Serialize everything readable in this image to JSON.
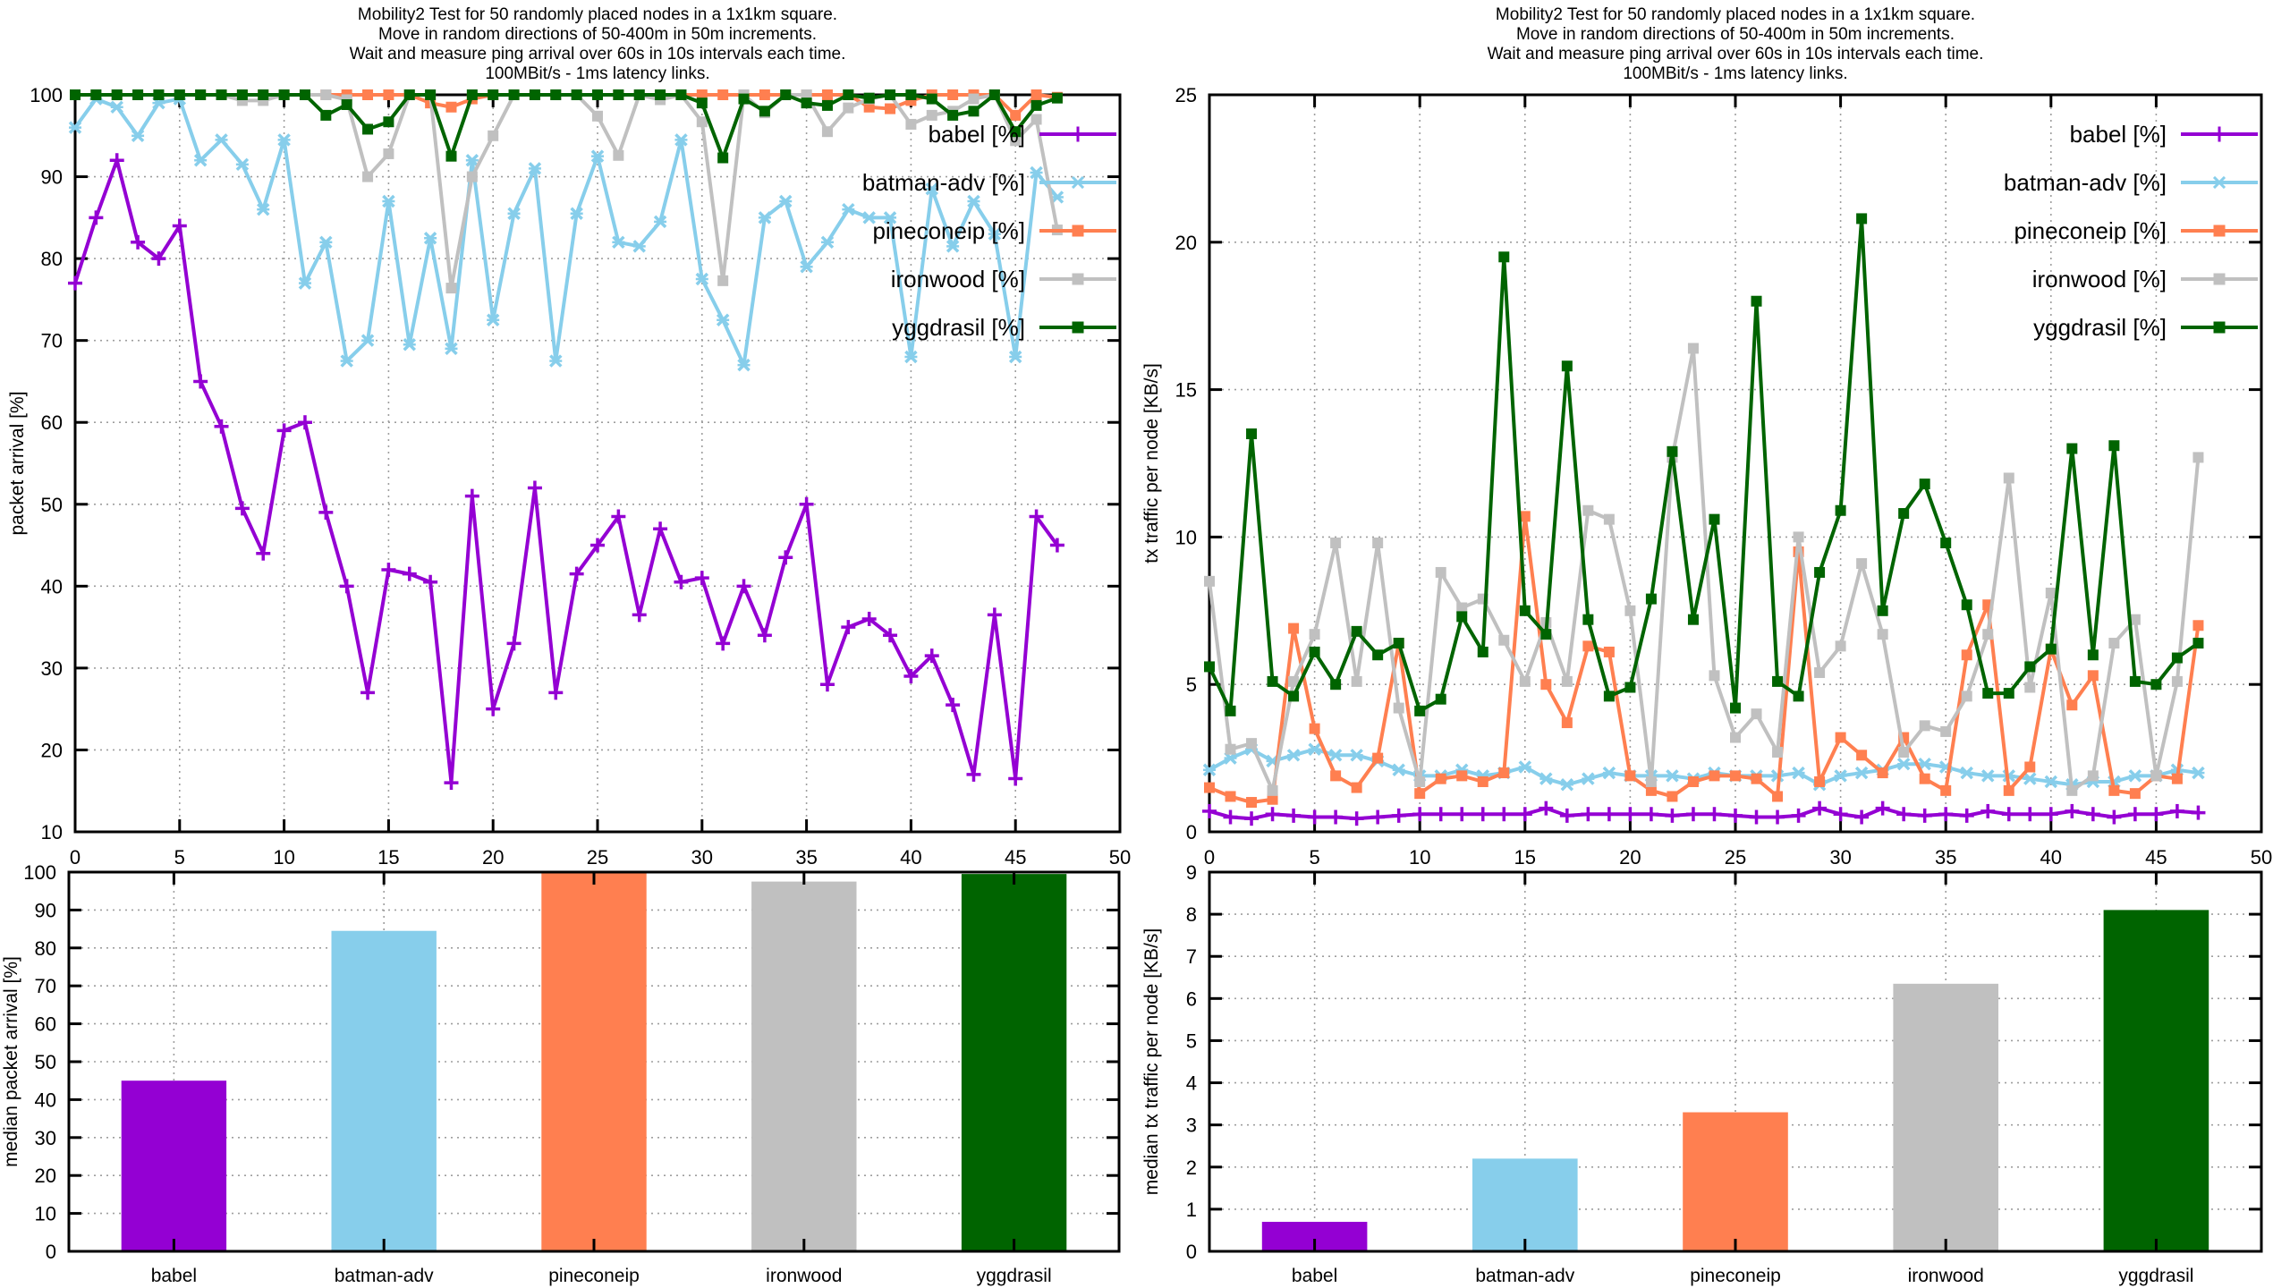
{
  "page": {
    "background": "#ffffff"
  },
  "title_lines": [
    "Mobility2 Test for 50 randomly placed nodes in a 1x1km square.",
    "Move in random directions of 50-400m in 50m increments.",
    "Wait and measure ping arrival over 60s in 10s intervals each time.",
    "100MBit/s - 1ms latency links."
  ],
  "colors": {
    "babel": "#9400d3",
    "batman-adv": "#87ceeb",
    "pineconeip": "#ff7f50",
    "ironwood": "#c0c0c0",
    "yggdrasil": "#006400",
    "grid": "#9e9e9e",
    "axis": "#000000",
    "text": "#000000"
  },
  "legend": {
    "entries": [
      {
        "label": "babel [%]",
        "series": "babel",
        "marker": "plus"
      },
      {
        "label": "batman-adv [%]",
        "series": "batman-adv",
        "marker": "cross"
      },
      {
        "label": "pineconeip [%]",
        "series": "pineconeip",
        "marker": "square"
      },
      {
        "label": "ironwood [%]",
        "series": "ironwood",
        "marker": "square"
      },
      {
        "label": "yggdrasil [%]",
        "series": "yggdrasil",
        "marker": "square"
      }
    ]
  },
  "chart_data": [
    {
      "id": "packet-arrival-line",
      "type": "line",
      "title": "Mobility2 Test packet arrival over time",
      "xlabel": "",
      "ylabel": "packet arrival [%]",
      "xlim": [
        0,
        50
      ],
      "ylim": [
        10,
        100
      ],
      "xticks": [
        0,
        5,
        10,
        15,
        20,
        25,
        30,
        35,
        40,
        45,
        50
      ],
      "yticks": [
        10,
        20,
        30,
        40,
        50,
        60,
        70,
        80,
        90,
        100
      ],
      "grid": true,
      "legend_position": "inside-top-right",
      "x_start": 0,
      "x_step": 1,
      "series": [
        {
          "name": "babel",
          "marker": "plus",
          "values": [
            77,
            85,
            92,
            82,
            80,
            84,
            65,
            59.5,
            49.5,
            44,
            59,
            60,
            49,
            40,
            27,
            42,
            41.5,
            40.5,
            16,
            51,
            25,
            33,
            52,
            27,
            41.5,
            45,
            48.5,
            36.5,
            47,
            40.5,
            41,
            33,
            40,
            34,
            43.5,
            50,
            28,
            35,
            36,
            34,
            29,
            31.5,
            25.5,
            17,
            36.5,
            16.5,
            48.5,
            45
          ]
        },
        {
          "name": "batman-adv",
          "marker": "cross",
          "values": [
            96,
            99.5,
            98.5,
            95,
            99,
            99.5,
            92,
            94.5,
            91.5,
            86,
            94.5,
            77,
            82,
            67.5,
            70,
            87,
            69.5,
            82.5,
            69,
            92,
            72.5,
            85.5,
            91,
            67.5,
            85.5,
            92.5,
            82,
            81.5,
            84.5,
            94.5,
            77.5,
            72.5,
            67,
            85,
            87,
            79,
            82,
            86,
            85,
            85,
            68,
            88.5,
            81.5,
            87,
            83,
            68,
            90.5,
            87.5
          ]
        },
        {
          "name": "pineconeip",
          "marker": "square",
          "values": [
            100,
            100,
            100,
            100,
            100,
            100,
            100,
            100,
            100,
            100,
            100,
            100,
            100,
            100,
            100,
            100,
            100,
            99,
            98.5,
            99.5,
            100,
            100,
            100,
            100,
            100,
            100,
            100,
            100,
            100,
            100,
            100,
            100,
            100,
            100,
            100,
            100,
            100,
            100,
            98.5,
            98.3,
            99.3,
            100,
            100,
            100,
            100,
            97.5,
            100,
            99.7
          ]
        },
        {
          "name": "ironwood",
          "marker": "square",
          "values": [
            100,
            100,
            100,
            100,
            100,
            100,
            100,
            100,
            99.3,
            99.3,
            100,
            100,
            100,
            99.4,
            90,
            92.8,
            100,
            100,
            76.4,
            90,
            95,
            100,
            100,
            100,
            100,
            97.4,
            92.6,
            100,
            99.4,
            100,
            96.7,
            77.3,
            100,
            97.8,
            100,
            100,
            95.5,
            98.4,
            99.5,
            100,
            96.4,
            97.5,
            98,
            99.5,
            100,
            94.4,
            97,
            83.5
          ]
        },
        {
          "name": "yggdrasil",
          "marker": "square",
          "values": [
            100,
            100,
            100,
            100,
            100,
            100,
            100,
            100,
            100,
            100,
            100,
            100,
            97.5,
            98.8,
            95.8,
            96.7,
            100,
            100,
            92.5,
            100,
            100,
            100,
            100,
            100,
            100,
            100,
            100,
            100,
            100,
            100,
            99,
            92.3,
            99.5,
            98,
            100,
            99,
            98.7,
            100,
            99.6,
            100,
            100,
            99.5,
            97.5,
            98,
            100,
            95.5,
            98.7,
            99.6
          ]
        }
      ]
    },
    {
      "id": "tx-traffic-line",
      "type": "line",
      "title": "Mobility2 Test tx traffic per node over time",
      "xlabel": "",
      "ylabel": "tx traffic per node [KB/s]",
      "xlim": [
        0,
        50
      ],
      "ylim": [
        0,
        25
      ],
      "xticks": [
        0,
        5,
        10,
        15,
        20,
        25,
        30,
        35,
        40,
        45,
        50
      ],
      "yticks": [
        0,
        5,
        10,
        15,
        20,
        25
      ],
      "grid": true,
      "legend_position": "inside-top-right",
      "x_start": 0,
      "x_step": 1,
      "series": [
        {
          "name": "babel",
          "marker": "plus",
          "values": [
            0.7,
            0.5,
            0.45,
            0.6,
            0.55,
            0.5,
            0.5,
            0.45,
            0.5,
            0.55,
            0.6,
            0.6,
            0.6,
            0.6,
            0.6,
            0.6,
            0.8,
            0.55,
            0.6,
            0.6,
            0.6,
            0.6,
            0.55,
            0.6,
            0.6,
            0.55,
            0.5,
            0.5,
            0.55,
            0.8,
            0.6,
            0.5,
            0.8,
            0.6,
            0.55,
            0.6,
            0.55,
            0.7,
            0.6,
            0.6,
            0.6,
            0.7,
            0.6,
            0.5,
            0.6,
            0.6,
            0.7,
            0.65
          ]
        },
        {
          "name": "batman-adv",
          "marker": "cross",
          "values": [
            2.1,
            2.5,
            2.8,
            2.4,
            2.6,
            2.8,
            2.6,
            2.6,
            2.4,
            2.1,
            1.9,
            1.9,
            2.1,
            1.9,
            2.0,
            2.2,
            1.8,
            1.6,
            1.8,
            2.0,
            1.9,
            1.9,
            1.9,
            1.8,
            2.0,
            1.9,
            1.9,
            1.9,
            2.0,
            1.6,
            1.9,
            2.0,
            2.1,
            2.3,
            2.3,
            2.2,
            2.0,
            1.9,
            1.9,
            1.8,
            1.7,
            1.6,
            1.7,
            1.7,
            1.9,
            1.9,
            2.1,
            2.0
          ]
        },
        {
          "name": "pineconeip",
          "marker": "square",
          "values": [
            1.5,
            1.2,
            1.0,
            1.1,
            6.9,
            3.5,
            1.9,
            1.5,
            2.5,
            6.4,
            1.3,
            1.8,
            1.9,
            1.7,
            2.0,
            10.7,
            5.0,
            3.7,
            6.3,
            6.1,
            1.9,
            1.4,
            1.2,
            1.7,
            1.9,
            1.9,
            1.8,
            1.2,
            9.5,
            1.7,
            3.2,
            2.6,
            2.0,
            3.2,
            1.8,
            1.4,
            6.0,
            7.7,
            1.4,
            2.2,
            6.2,
            4.3,
            5.3,
            1.4,
            1.3,
            1.9,
            1.8,
            7.0
          ]
        },
        {
          "name": "ironwood",
          "marker": "square",
          "values": [
            8.5,
            2.8,
            3.0,
            1.4,
            5.1,
            6.7,
            9.8,
            5.1,
            9.8,
            4.2,
            1.7,
            8.8,
            7.6,
            7.9,
            6.5,
            5.1,
            7.1,
            5.1,
            10.9,
            10.6,
            7.5,
            1.7,
            12.7,
            16.4,
            5.3,
            3.2,
            4.0,
            2.7,
            10.0,
            5.4,
            6.3,
            9.1,
            6.7,
            2.7,
            3.6,
            3.4,
            4.6,
            6.7,
            12.0,
            4.9,
            8.1,
            1.4,
            1.9,
            6.4,
            7.2,
            1.9,
            5.1,
            12.7
          ]
        },
        {
          "name": "yggdrasil",
          "marker": "square",
          "values": [
            5.6,
            4.1,
            13.5,
            5.1,
            4.6,
            6.1,
            5.0,
            6.8,
            6.0,
            6.4,
            4.1,
            4.5,
            7.3,
            6.1,
            19.5,
            7.5,
            6.7,
            15.8,
            7.2,
            4.6,
            4.9,
            7.9,
            12.9,
            7.2,
            10.6,
            4.2,
            18.0,
            5.1,
            4.6,
            8.8,
            10.9,
            20.8,
            7.5,
            10.8,
            11.8,
            9.8,
            7.7,
            4.7,
            4.7,
            5.6,
            6.2,
            13.0,
            6.0,
            13.1,
            5.1,
            5.0,
            5.9,
            6.4
          ]
        }
      ]
    },
    {
      "id": "median-packet-arrival-bar",
      "type": "bar",
      "title": "median packet arrival per protocol",
      "xlabel": "",
      "ylabel": "median packet arrival [%]",
      "ylim": [
        0,
        100
      ],
      "yticks": [
        0,
        10,
        20,
        30,
        40,
        50,
        60,
        70,
        80,
        90,
        100
      ],
      "grid": true,
      "categories": [
        "babel",
        "batman-adv",
        "pineconeip",
        "ironwood",
        "yggdrasil"
      ],
      "values": [
        45,
        84.5,
        100,
        97.5,
        99.5
      ]
    },
    {
      "id": "median-tx-traffic-bar",
      "type": "bar",
      "title": "median tx traffic per node per protocol",
      "xlabel": "",
      "ylabel": "median tx traffic per node [KB/s]",
      "ylim": [
        0,
        9
      ],
      "yticks": [
        0,
        1,
        2,
        3,
        4,
        5,
        6,
        7,
        8,
        9
      ],
      "grid": true,
      "categories": [
        "babel",
        "batman-adv",
        "pineconeip",
        "ironwood",
        "yggdrasil"
      ],
      "values": [
        0.7,
        2.2,
        3.3,
        6.35,
        8.1
      ]
    }
  ]
}
